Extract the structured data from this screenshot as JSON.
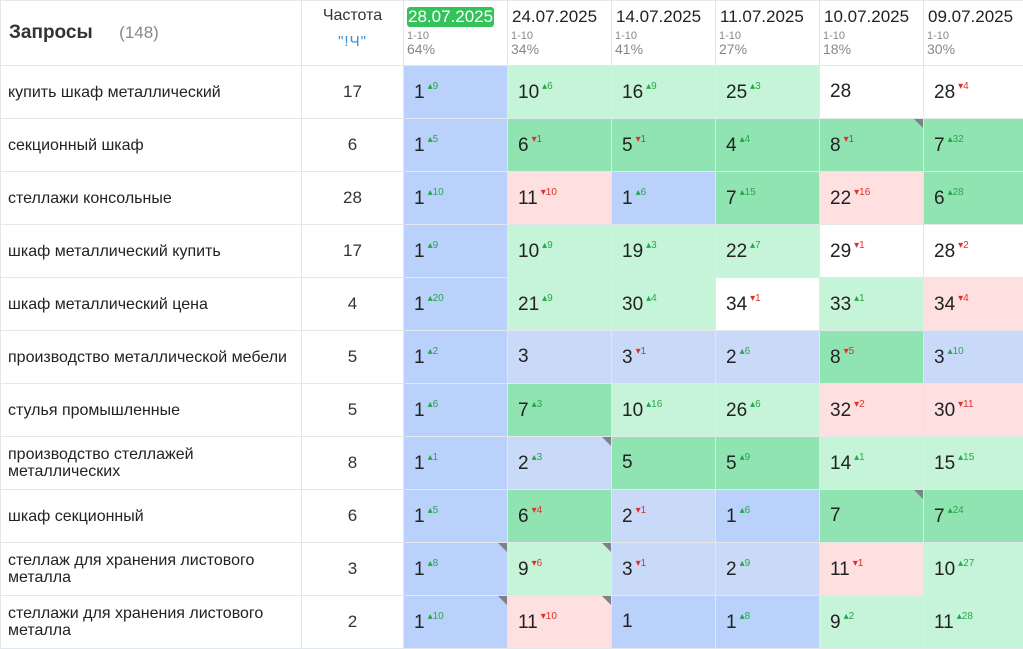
{
  "header": {
    "title": "Запросы",
    "count": "(148)",
    "freq_title": "Частота",
    "freq_sub": "\"!Ч\"",
    "dates": [
      {
        "date": "28.07.2025",
        "range": "1-10",
        "pct": "64%",
        "active": true
      },
      {
        "date": "24.07.2025",
        "range": "1-10",
        "pct": "34%",
        "active": false
      },
      {
        "date": "14.07.2025",
        "range": "1-10",
        "pct": "41%",
        "active": false
      },
      {
        "date": "11.07.2025",
        "range": "1-10",
        "pct": "27%",
        "active": false
      },
      {
        "date": "10.07.2025",
        "range": "1-10",
        "pct": "18%",
        "active": false
      },
      {
        "date": "09.07.2025",
        "range": "1-10",
        "pct": "30%",
        "active": false
      }
    ]
  },
  "rows": [
    {
      "query": "купить шкаф металлический",
      "freq": "17",
      "cells": [
        {
          "pos": "1",
          "delta": "9",
          "dir": "up",
          "bg": "blue"
        },
        {
          "pos": "10",
          "delta": "6",
          "dir": "up",
          "bg": "green-l"
        },
        {
          "pos": "16",
          "delta": "9",
          "dir": "up",
          "bg": "green-l"
        },
        {
          "pos": "25",
          "delta": "3",
          "dir": "up",
          "bg": "green-l"
        },
        {
          "pos": "28",
          "delta": "",
          "dir": "",
          "bg": "white"
        },
        {
          "pos": "28",
          "delta": "4",
          "dir": "down",
          "bg": "white"
        }
      ]
    },
    {
      "query": "секционный шкаф",
      "freq": "6",
      "cells": [
        {
          "pos": "1",
          "delta": "5",
          "dir": "up",
          "bg": "blue"
        },
        {
          "pos": "6",
          "delta": "1",
          "dir": "down",
          "bg": "green"
        },
        {
          "pos": "5",
          "delta": "1",
          "dir": "down",
          "bg": "green"
        },
        {
          "pos": "4",
          "delta": "4",
          "dir": "up",
          "bg": "green"
        },
        {
          "pos": "8",
          "delta": "1",
          "dir": "down",
          "bg": "green",
          "corner": true
        },
        {
          "pos": "7",
          "delta": "32",
          "dir": "up",
          "bg": "green"
        }
      ]
    },
    {
      "query": "стеллажи консольные",
      "freq": "28",
      "cells": [
        {
          "pos": "1",
          "delta": "10",
          "dir": "up",
          "bg": "blue"
        },
        {
          "pos": "11",
          "delta": "10",
          "dir": "down",
          "bg": "pink"
        },
        {
          "pos": "1",
          "delta": "6",
          "dir": "up",
          "bg": "blue"
        },
        {
          "pos": "7",
          "delta": "15",
          "dir": "up",
          "bg": "green"
        },
        {
          "pos": "22",
          "delta": "16",
          "dir": "down",
          "bg": "pink"
        },
        {
          "pos": "6",
          "delta": "28",
          "dir": "up",
          "bg": "green"
        }
      ]
    },
    {
      "query": "шкаф металлический купить",
      "freq": "17",
      "cells": [
        {
          "pos": "1",
          "delta": "9",
          "dir": "up",
          "bg": "blue"
        },
        {
          "pos": "10",
          "delta": "9",
          "dir": "up",
          "bg": "green-l"
        },
        {
          "pos": "19",
          "delta": "3",
          "dir": "up",
          "bg": "green-l"
        },
        {
          "pos": "22",
          "delta": "7",
          "dir": "up",
          "bg": "green-l"
        },
        {
          "pos": "29",
          "delta": "1",
          "dir": "down",
          "bg": "white"
        },
        {
          "pos": "28",
          "delta": "2",
          "dir": "down",
          "bg": "white"
        }
      ]
    },
    {
      "query": "шкаф металлический цена",
      "freq": "4",
      "cells": [
        {
          "pos": "1",
          "delta": "20",
          "dir": "up",
          "bg": "blue"
        },
        {
          "pos": "21",
          "delta": "9",
          "dir": "up",
          "bg": "green-l"
        },
        {
          "pos": "30",
          "delta": "4",
          "dir": "up",
          "bg": "green-l"
        },
        {
          "pos": "34",
          "delta": "1",
          "dir": "down",
          "bg": "white"
        },
        {
          "pos": "33",
          "delta": "1",
          "dir": "up",
          "bg": "green-l"
        },
        {
          "pos": "34",
          "delta": "4",
          "dir": "down",
          "bg": "pink"
        }
      ]
    },
    {
      "query": "производство металлической мебели",
      "freq": "5",
      "cells": [
        {
          "pos": "1",
          "delta": "2",
          "dir": "up",
          "bg": "blue"
        },
        {
          "pos": "3",
          "delta": "",
          "dir": "",
          "bg": "blue-l"
        },
        {
          "pos": "3",
          "delta": "1",
          "dir": "down",
          "bg": "blue-l"
        },
        {
          "pos": "2",
          "delta": "6",
          "dir": "up",
          "bg": "blue-l"
        },
        {
          "pos": "8",
          "delta": "5",
          "dir": "down",
          "bg": "green"
        },
        {
          "pos": "3",
          "delta": "10",
          "dir": "up",
          "bg": "blue-l"
        }
      ]
    },
    {
      "query": "стулья промышленные",
      "freq": "5",
      "cells": [
        {
          "pos": "1",
          "delta": "6",
          "dir": "up",
          "bg": "blue"
        },
        {
          "pos": "7",
          "delta": "3",
          "dir": "up",
          "bg": "green"
        },
        {
          "pos": "10",
          "delta": "16",
          "dir": "up",
          "bg": "green-l"
        },
        {
          "pos": "26",
          "delta": "6",
          "dir": "up",
          "bg": "green-l"
        },
        {
          "pos": "32",
          "delta": "2",
          "dir": "down",
          "bg": "pink"
        },
        {
          "pos": "30",
          "delta": "11",
          "dir": "down",
          "bg": "pink"
        }
      ]
    },
    {
      "query": "производство стеллажей металлических",
      "freq": "8",
      "cells": [
        {
          "pos": "1",
          "delta": "1",
          "dir": "up",
          "bg": "blue"
        },
        {
          "pos": "2",
          "delta": "3",
          "dir": "up",
          "bg": "blue-l",
          "corner": true
        },
        {
          "pos": "5",
          "delta": "",
          "dir": "",
          "bg": "green"
        },
        {
          "pos": "5",
          "delta": "9",
          "dir": "up",
          "bg": "green"
        },
        {
          "pos": "14",
          "delta": "1",
          "dir": "up",
          "bg": "green-l"
        },
        {
          "pos": "15",
          "delta": "15",
          "dir": "up",
          "bg": "green-l"
        }
      ]
    },
    {
      "query": "шкаф секционный",
      "freq": "6",
      "cells": [
        {
          "pos": "1",
          "delta": "5",
          "dir": "up",
          "bg": "blue"
        },
        {
          "pos": "6",
          "delta": "4",
          "dir": "down",
          "bg": "green"
        },
        {
          "pos": "2",
          "delta": "1",
          "dir": "down",
          "bg": "blue-l"
        },
        {
          "pos": "1",
          "delta": "6",
          "dir": "up",
          "bg": "blue"
        },
        {
          "pos": "7",
          "delta": "",
          "dir": "",
          "bg": "green",
          "corner": true
        },
        {
          "pos": "7",
          "delta": "24",
          "dir": "up",
          "bg": "green"
        }
      ]
    },
    {
      "query": "стеллаж для хранения листового металла",
      "freq": "3",
      "cells": [
        {
          "pos": "1",
          "delta": "8",
          "dir": "up",
          "bg": "blue",
          "corner": true
        },
        {
          "pos": "9",
          "delta": "6",
          "dir": "down",
          "bg": "green-l",
          "corner": true
        },
        {
          "pos": "3",
          "delta": "1",
          "dir": "down",
          "bg": "blue-l"
        },
        {
          "pos": "2",
          "delta": "9",
          "dir": "up",
          "bg": "blue-l"
        },
        {
          "pos": "11",
          "delta": "1",
          "dir": "down",
          "bg": "pink"
        },
        {
          "pos": "10",
          "delta": "27",
          "dir": "up",
          "bg": "green-l"
        }
      ]
    },
    {
      "query": "стеллажи для хранения листового металла",
      "freq": "2",
      "cells": [
        {
          "pos": "1",
          "delta": "10",
          "dir": "up",
          "bg": "blue",
          "corner": true
        },
        {
          "pos": "11",
          "delta": "10",
          "dir": "down",
          "bg": "pink",
          "corner": true
        },
        {
          "pos": "1",
          "delta": "",
          "dir": "",
          "bg": "blue"
        },
        {
          "pos": "1",
          "delta": "8",
          "dir": "up",
          "bg": "blue"
        },
        {
          "pos": "9",
          "delta": "2",
          "dir": "up",
          "bg": "green-l"
        },
        {
          "pos": "11",
          "delta": "28",
          "dir": "up",
          "bg": "green-l"
        }
      ]
    }
  ]
}
